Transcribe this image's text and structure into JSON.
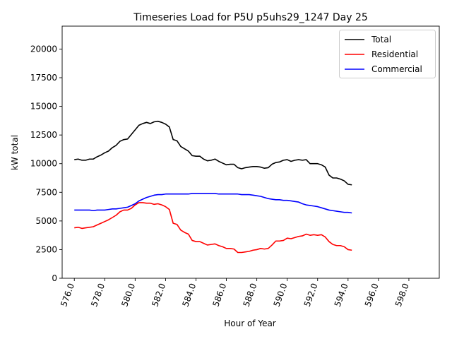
{
  "chart_data": {
    "type": "line",
    "title": "Timeseries Load for P5U p5uhs29_1247  Day 25",
    "xlabel": "Hour of Year",
    "ylabel": "kW total",
    "xlim": [
      575.2,
      600.0
    ],
    "ylim": [
      0,
      22000
    ],
    "xticks": [
      576.0,
      578.0,
      580.0,
      582.0,
      584.0,
      586.0,
      588.0,
      590.0,
      592.0,
      594.0,
      596.0,
      598.0
    ],
    "xtick_labels": [
      "576.0",
      "578.0",
      "580.0",
      "582.0",
      "584.0",
      "586.0",
      "588.0",
      "590.0",
      "592.0",
      "594.0",
      "596.0",
      "598.0"
    ],
    "yticks": [
      0,
      2500,
      5000,
      7500,
      10000,
      12500,
      15000,
      17500,
      20000
    ],
    "ytick_labels": [
      "0",
      "2500",
      "5000",
      "7500",
      "10000",
      "12500",
      "15000",
      "17500",
      "20000"
    ],
    "legend_position": "upper right",
    "x_start": 576.0,
    "x_step": 0.25,
    "series": [
      {
        "name": "Total",
        "color": "#000000",
        "values": [
          10350,
          10400,
          10300,
          10300,
          10400,
          10400,
          10600,
          10750,
          10950,
          11100,
          11400,
          11600,
          11950,
          12100,
          12150,
          12550,
          12950,
          13350,
          13500,
          13600,
          13500,
          13650,
          13700,
          13600,
          13450,
          13200,
          12100,
          12000,
          11500,
          11300,
          11100,
          10700,
          10650,
          10650,
          10400,
          10250,
          10300,
          10400,
          10200,
          10050,
          9900,
          9950,
          9950,
          9650,
          9550,
          9650,
          9700,
          9750,
          9750,
          9700,
          9600,
          9650,
          9950,
          10100,
          10150,
          10300,
          10350,
          10200,
          10300,
          10350,
          10300,
          10350,
          10000,
          10000,
          10000,
          9900,
          9700,
          9000,
          8750,
          8750,
          8650,
          8500,
          8200,
          8150
        ]
      },
      {
        "name": "Residential",
        "color": "#ff0000",
        "values": [
          4400,
          4450,
          4350,
          4400,
          4450,
          4500,
          4650,
          4800,
          4950,
          5100,
          5300,
          5500,
          5800,
          5950,
          5950,
          6100,
          6400,
          6600,
          6600,
          6550,
          6550,
          6450,
          6500,
          6400,
          6250,
          6000,
          4800,
          4700,
          4200,
          4000,
          3850,
          3300,
          3200,
          3200,
          3050,
          2900,
          2950,
          3000,
          2850,
          2750,
          2600,
          2600,
          2550,
          2250,
          2250,
          2300,
          2350,
          2450,
          2500,
          2600,
          2550,
          2600,
          2900,
          3250,
          3250,
          3300,
          3500,
          3450,
          3550,
          3650,
          3700,
          3850,
          3750,
          3800,
          3750,
          3800,
          3600,
          3200,
          2950,
          2850,
          2850,
          2750,
          2500,
          2450
        ]
      },
      {
        "name": "Commercial",
        "color": "#0000ff",
        "values": [
          5950,
          5950,
          5950,
          5950,
          5950,
          5900,
          5950,
          5950,
          5950,
          6000,
          6050,
          6050,
          6100,
          6150,
          6200,
          6350,
          6500,
          6750,
          6900,
          7050,
          7150,
          7250,
          7300,
          7300,
          7350,
          7350,
          7350,
          7350,
          7350,
          7350,
          7350,
          7400,
          7400,
          7400,
          7400,
          7400,
          7400,
          7400,
          7350,
          7350,
          7350,
          7350,
          7350,
          7350,
          7300,
          7300,
          7300,
          7250,
          7200,
          7150,
          7050,
          6950,
          6900,
          6850,
          6850,
          6800,
          6800,
          6750,
          6700,
          6650,
          6500,
          6400,
          6350,
          6300,
          6250,
          6150,
          6050,
          5950,
          5900,
          5850,
          5800,
          5750,
          5750,
          5700
        ]
      }
    ]
  }
}
